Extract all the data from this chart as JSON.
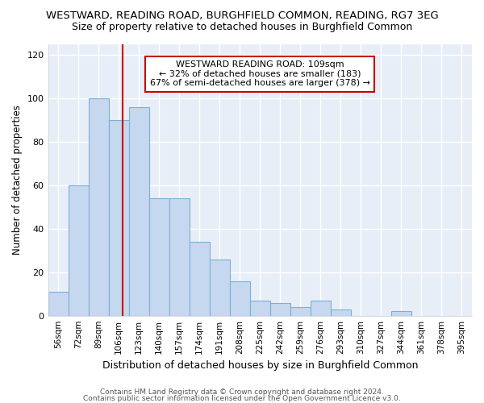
{
  "title": "WESTWARD, READING ROAD, BURGHFIELD COMMON, READING, RG7 3EG",
  "subtitle": "Size of property relative to detached houses in Burghfield Common",
  "xlabel": "Distribution of detached houses by size in Burghfield Common",
  "ylabel": "Number of detached properties",
  "categories": [
    "56sqm",
    "72sqm",
    "89sqm",
    "106sqm",
    "123sqm",
    "140sqm",
    "157sqm",
    "174sqm",
    "191sqm",
    "208sqm",
    "225sqm",
    "242sqm",
    "259sqm",
    "276sqm",
    "293sqm",
    "310sqm",
    "327sqm",
    "344sqm",
    "361sqm",
    "378sqm",
    "395sqm"
  ],
  "values": [
    11,
    60,
    100,
    90,
    96,
    54,
    54,
    34,
    26,
    16,
    7,
    6,
    4,
    7,
    3,
    0,
    0,
    2,
    0,
    0,
    0
  ],
  "bar_color": "#c5d8f0",
  "bar_edge_color": "#7bafd4",
  "reference_line_label": "WESTWARD READING ROAD: 109sqm",
  "annotation_line1": "← 32% of detached houses are smaller (183)",
  "annotation_line2": "67% of semi-detached houses are larger (378) →",
  "annotation_box_color": "#ffffff",
  "annotation_box_edge": "#cc0000",
  "red_line_color": "#cc0000",
  "ref_line_index": 3.18,
  "ylim": [
    0,
    125
  ],
  "yticks": [
    0,
    20,
    40,
    60,
    80,
    100,
    120
  ],
  "plot_bg_color": "#e8eef8",
  "fig_bg_color": "#ffffff",
  "grid_color": "#ffffff",
  "title_fontsize": 9.5,
  "subtitle_fontsize": 9,
  "footer1": "Contains HM Land Registry data © Crown copyright and database right 2024.",
  "footer2": "Contains public sector information licensed under the Open Government Licence v3.0."
}
